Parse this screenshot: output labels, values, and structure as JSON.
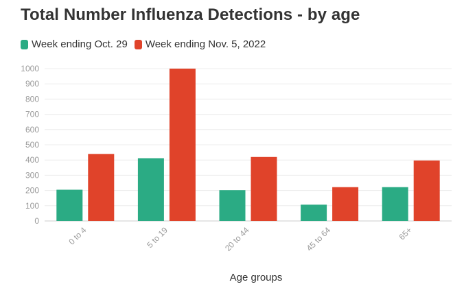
{
  "chart_data": {
    "type": "bar",
    "title": "Total Number Influenza Detections - by age",
    "xlabel": "Age groups",
    "ylabel": "",
    "categories": [
      "0 to 4",
      "5 to 19",
      "20 to 44",
      "45 to 64",
      "65+"
    ],
    "series": [
      {
        "name": "Week ending Oct. 29",
        "color": "#2bab84",
        "values": [
          205,
          412,
          202,
          107,
          222
        ]
      },
      {
        "name": "Week ending Nov. 5, 2022",
        "color": "#e0432a",
        "values": [
          440,
          1000,
          420,
          222,
          397
        ]
      }
    ],
    "ylim": [
      0,
      1000
    ],
    "yticks": [
      0,
      100,
      200,
      300,
      400,
      500,
      600,
      700,
      800,
      900,
      1000
    ],
    "grid": true,
    "legend_position": "top-left"
  }
}
